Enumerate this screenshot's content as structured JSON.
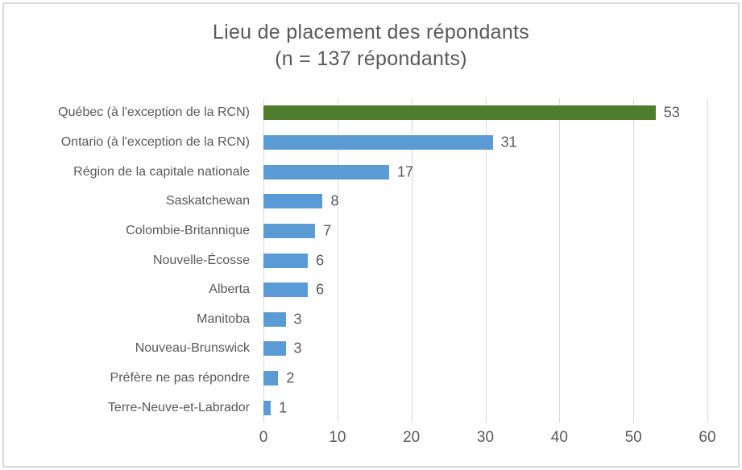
{
  "chart_data": {
    "type": "bar",
    "orientation": "horizontal",
    "title": "Lieu de placement des répondants",
    "subtitle": "(n = 137 répondants)",
    "categories": [
      "Québec (à l'exception de la RCN)",
      "Ontario (à l'exception de la RCN)",
      "Région de la capitale nationale",
      "Saskatchewan",
      "Colombie-Britannique",
      "Nouvelle-Écosse",
      "Alberta",
      "Manitoba",
      "Nouveau-Brunswick",
      "Préfère ne pas répondre",
      "Terre-Neuve-et-Labrador"
    ],
    "values": [
      53,
      31,
      17,
      8,
      7,
      6,
      6,
      3,
      3,
      2,
      1
    ],
    "bar_colors": [
      "#4E7D2C",
      "#5B9BD5",
      "#5B9BD5",
      "#5B9BD5",
      "#5B9BD5",
      "#5B9BD5",
      "#5B9BD5",
      "#5B9BD5",
      "#5B9BD5",
      "#5B9BD5",
      "#5B9BD5"
    ],
    "data_labels": [
      "53",
      "31",
      "17",
      "8",
      "7",
      "6",
      "6",
      "3",
      "3",
      "2",
      "1"
    ],
    "xlabel": "",
    "ylabel": "",
    "xlim": [
      0,
      60
    ],
    "x_ticks": [
      0,
      10,
      20,
      30,
      40,
      50,
      60
    ],
    "grid": "vertical",
    "legend": "none",
    "gridline_color": "#D9D9D9",
    "text_color": "#595959",
    "background_color": "#FFFFFF",
    "border_color": "#D9D9D9"
  }
}
